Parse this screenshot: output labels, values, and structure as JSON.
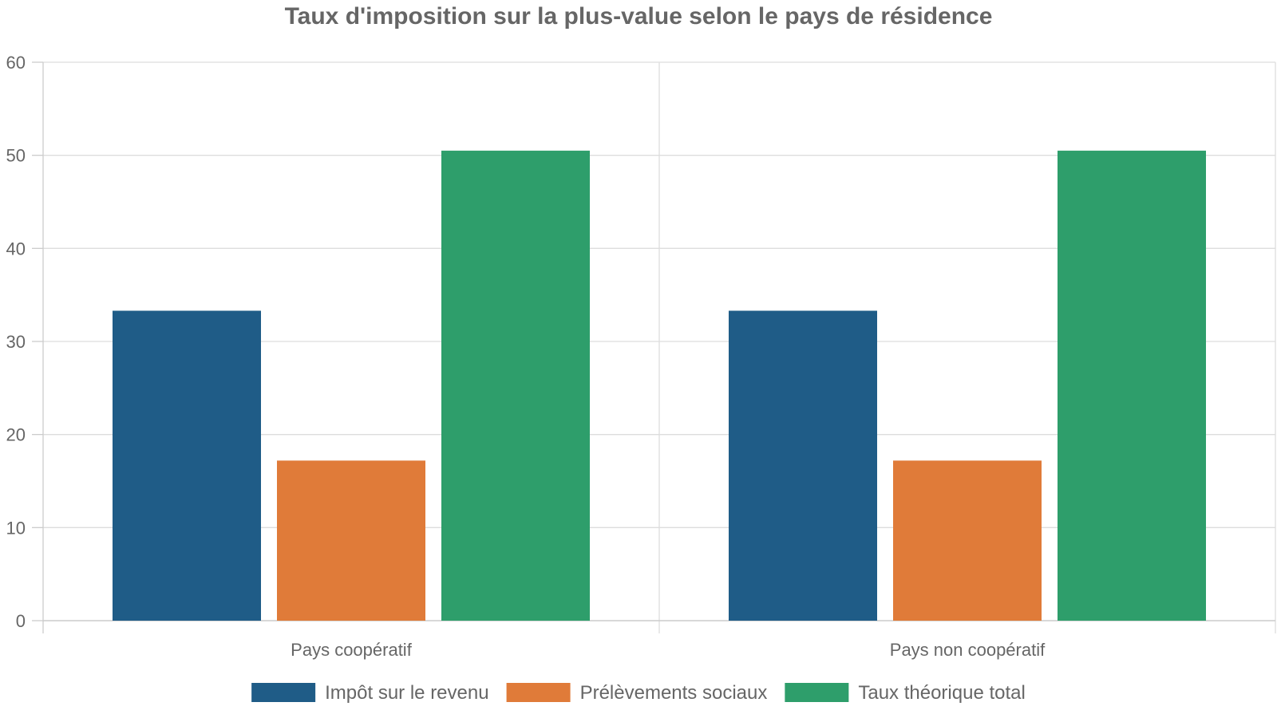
{
  "chart_data": {
    "type": "bar",
    "title": "Taux d'imposition sur la plus-value selon le pays de résidence",
    "categories": [
      "Pays coopératif",
      "Pays non coopératif"
    ],
    "series": [
      {
        "name": "Impôt sur le revenu",
        "values": [
          33.3,
          33.3
        ],
        "color": "#1f5c87"
      },
      {
        "name": "Prélèvements sociaux",
        "values": [
          17.2,
          17.2
        ],
        "color": "#e07b39"
      },
      {
        "name": "Taux théorique total",
        "values": [
          50.5,
          50.5
        ],
        "color": "#2e9e6b"
      }
    ],
    "ylim": [
      0,
      60
    ],
    "yticks": [
      0,
      10,
      20,
      30,
      40,
      50,
      60
    ],
    "grid": true,
    "legend_position": "bottom"
  }
}
